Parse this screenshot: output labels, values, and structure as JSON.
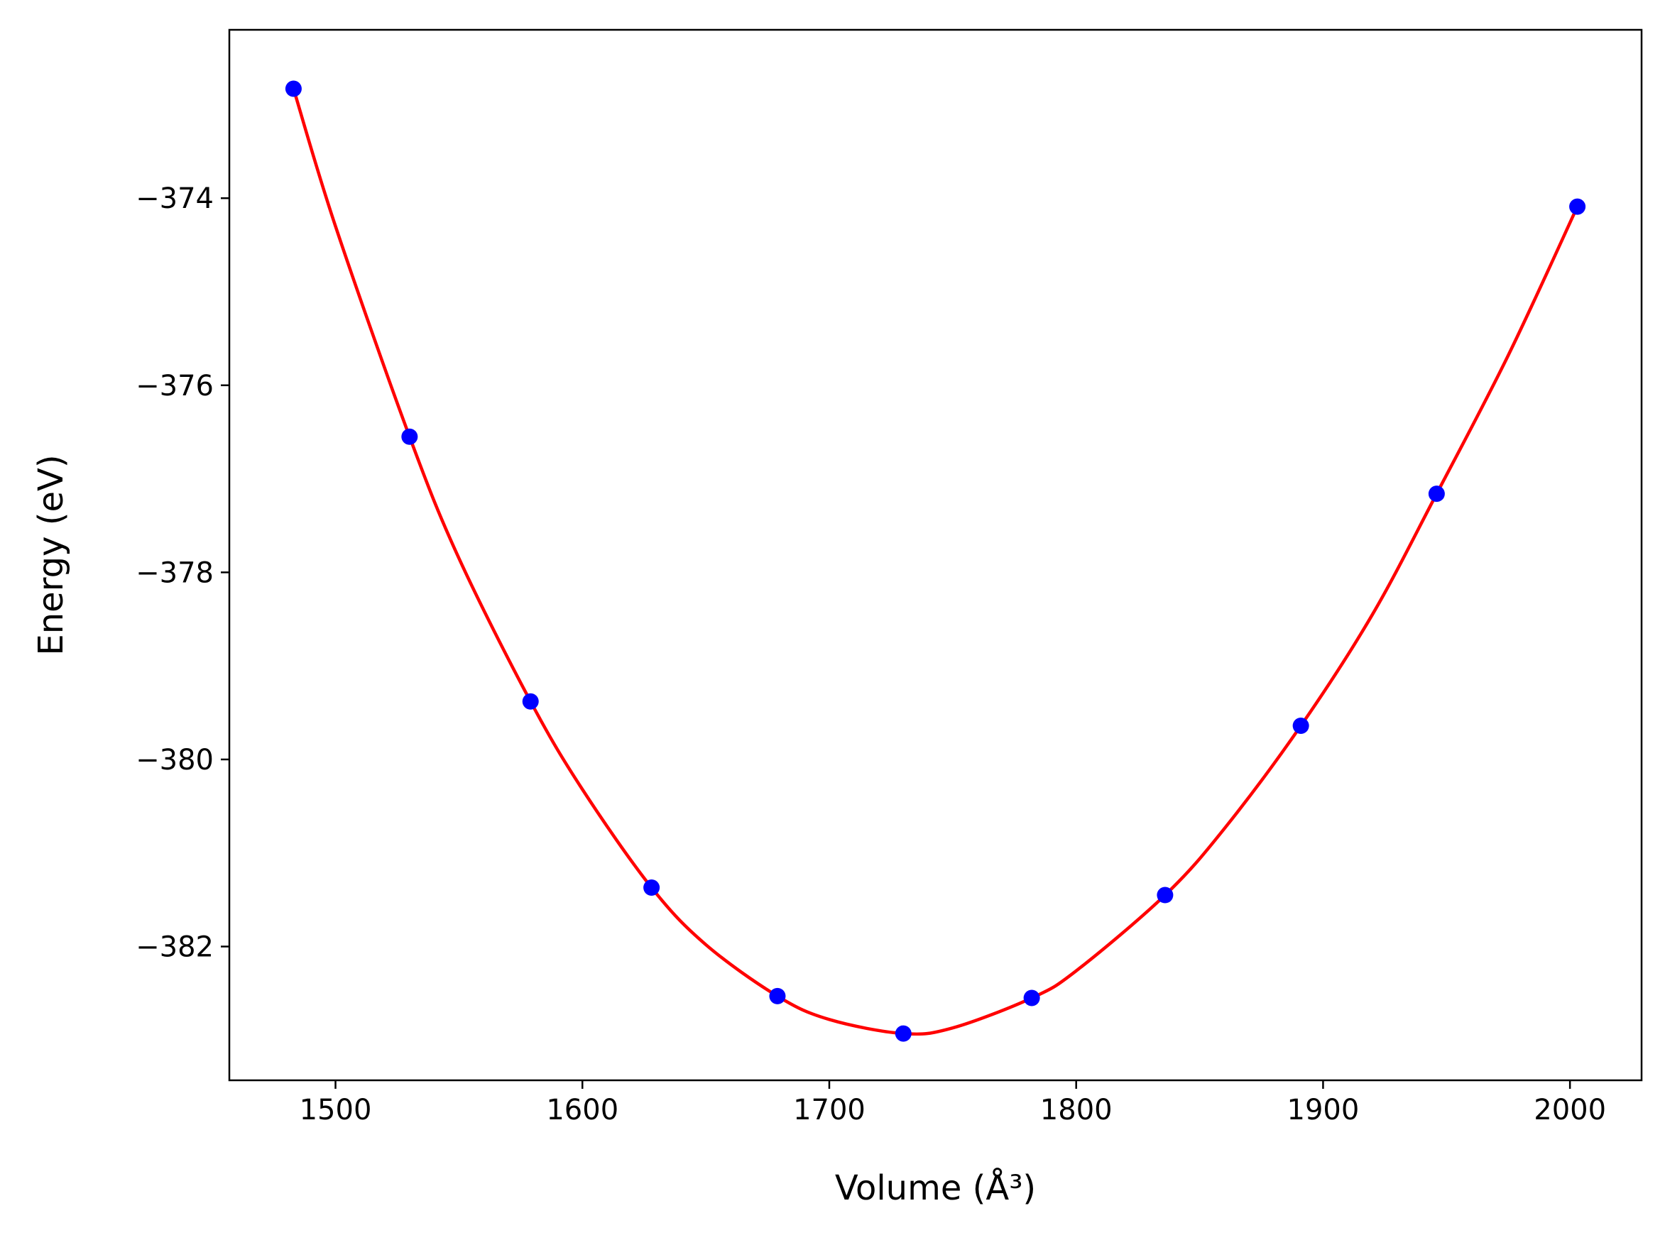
{
  "chart_data": {
    "type": "scatter",
    "title": "",
    "xlabel": "Volume (Å³)",
    "ylabel": "Energy (eV)",
    "xlim": [
      1457,
      2029
    ],
    "ylim": [
      -383.43,
      -372.2
    ],
    "x_ticks": [
      1500,
      1600,
      1700,
      1800,
      1900,
      2000
    ],
    "y_ticks": [
      -374,
      -376,
      -378,
      -380,
      -382
    ],
    "x_tick_labels": [
      "1500",
      "1600",
      "1700",
      "1800",
      "1900",
      "2000"
    ],
    "y_tick_labels": [
      "−374",
      "−376",
      "−378",
      "−380",
      "−382"
    ],
    "grid": false,
    "legend": "none",
    "series": [
      {
        "kind": "points",
        "color": "#0000ff",
        "x": [
          1483,
          1530,
          1579,
          1628,
          1679,
          1730,
          1782,
          1836,
          1891,
          1946,
          2003
        ],
        "y": [
          -372.83,
          -376.55,
          -379.38,
          -381.37,
          -382.53,
          -382.93,
          -382.55,
          -381.45,
          -379.64,
          -377.16,
          -374.09
        ]
      },
      {
        "kind": "fit-curve",
        "color": "#ff0000",
        "x": [
          1483,
          1500,
          1530,
          1550,
          1579,
          1600,
          1628,
          1650,
          1679,
          1700,
          1730,
          1750,
          1782,
          1800,
          1836,
          1860,
          1891,
          1920,
          1946,
          1975,
          2003
        ],
        "y": [
          -372.83,
          -374.3,
          -376.55,
          -377.85,
          -379.38,
          -380.32,
          -381.37,
          -381.98,
          -382.53,
          -382.78,
          -382.93,
          -382.87,
          -382.55,
          -382.26,
          -381.45,
          -380.74,
          -379.64,
          -378.45,
          -377.16,
          -375.68,
          -374.09
        ]
      }
    ]
  }
}
